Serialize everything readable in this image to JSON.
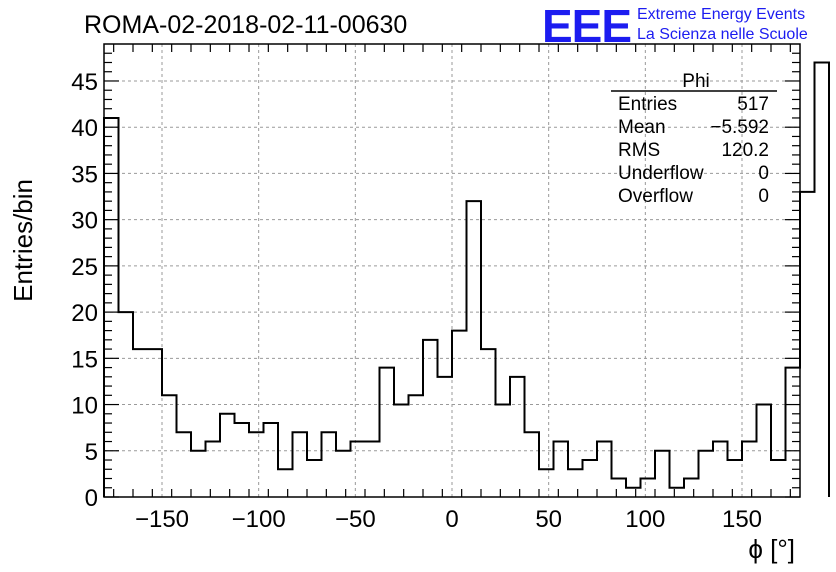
{
  "title": "ROMA-02-2018-02-11-00630",
  "logo": {
    "mark": "EEE",
    "line1": "Extreme Energy Events",
    "line2": "La Scienza nelle Scuole",
    "color": "#1c1cf0"
  },
  "stats": {
    "name": "Phi",
    "rows": [
      {
        "label": "Entries",
        "value": "517"
      },
      {
        "label": "Mean",
        "value": "−5.592"
      },
      {
        "label": "RMS",
        "value": "120.2"
      },
      {
        "label": "Underflow",
        "value": "0"
      },
      {
        "label": "Overflow",
        "value": "0"
      }
    ]
  },
  "chart_data": {
    "type": "bar",
    "histogram": true,
    "title": "ROMA-02-2018-02-11-00630",
    "xlabel": "ϕ [°]",
    "ylabel": "Entries/bin",
    "xlim": [
      -180,
      180
    ],
    "ylim": [
      0,
      49
    ],
    "grid": true,
    "x_ticks": [
      -150,
      -100,
      -50,
      0,
      50,
      100,
      150
    ],
    "x_tick_labels": [
      "−150",
      "−100",
      "−50",
      "0",
      "50",
      "100",
      "150"
    ],
    "y_ticks": [
      0,
      5,
      10,
      15,
      20,
      25,
      30,
      35,
      40,
      45
    ],
    "y_tick_labels": [
      "0",
      "5",
      "10",
      "15",
      "20",
      "25",
      "30",
      "35",
      "40",
      "45"
    ],
    "bin_edges_start": -180,
    "bin_width": 7.5,
    "values": [
      41,
      20,
      16,
      16,
      11,
      7,
      5,
      6,
      9,
      8,
      7,
      8,
      3,
      7,
      4,
      7,
      5,
      6,
      6,
      14,
      10,
      11,
      17,
      13,
      18,
      32,
      16,
      10,
      13,
      7,
      3,
      6,
      3,
      4,
      6,
      2,
      1,
      2,
      5,
      1,
      2,
      5,
      6,
      4,
      6,
      10,
      4,
      14,
      33,
      47
    ]
  }
}
